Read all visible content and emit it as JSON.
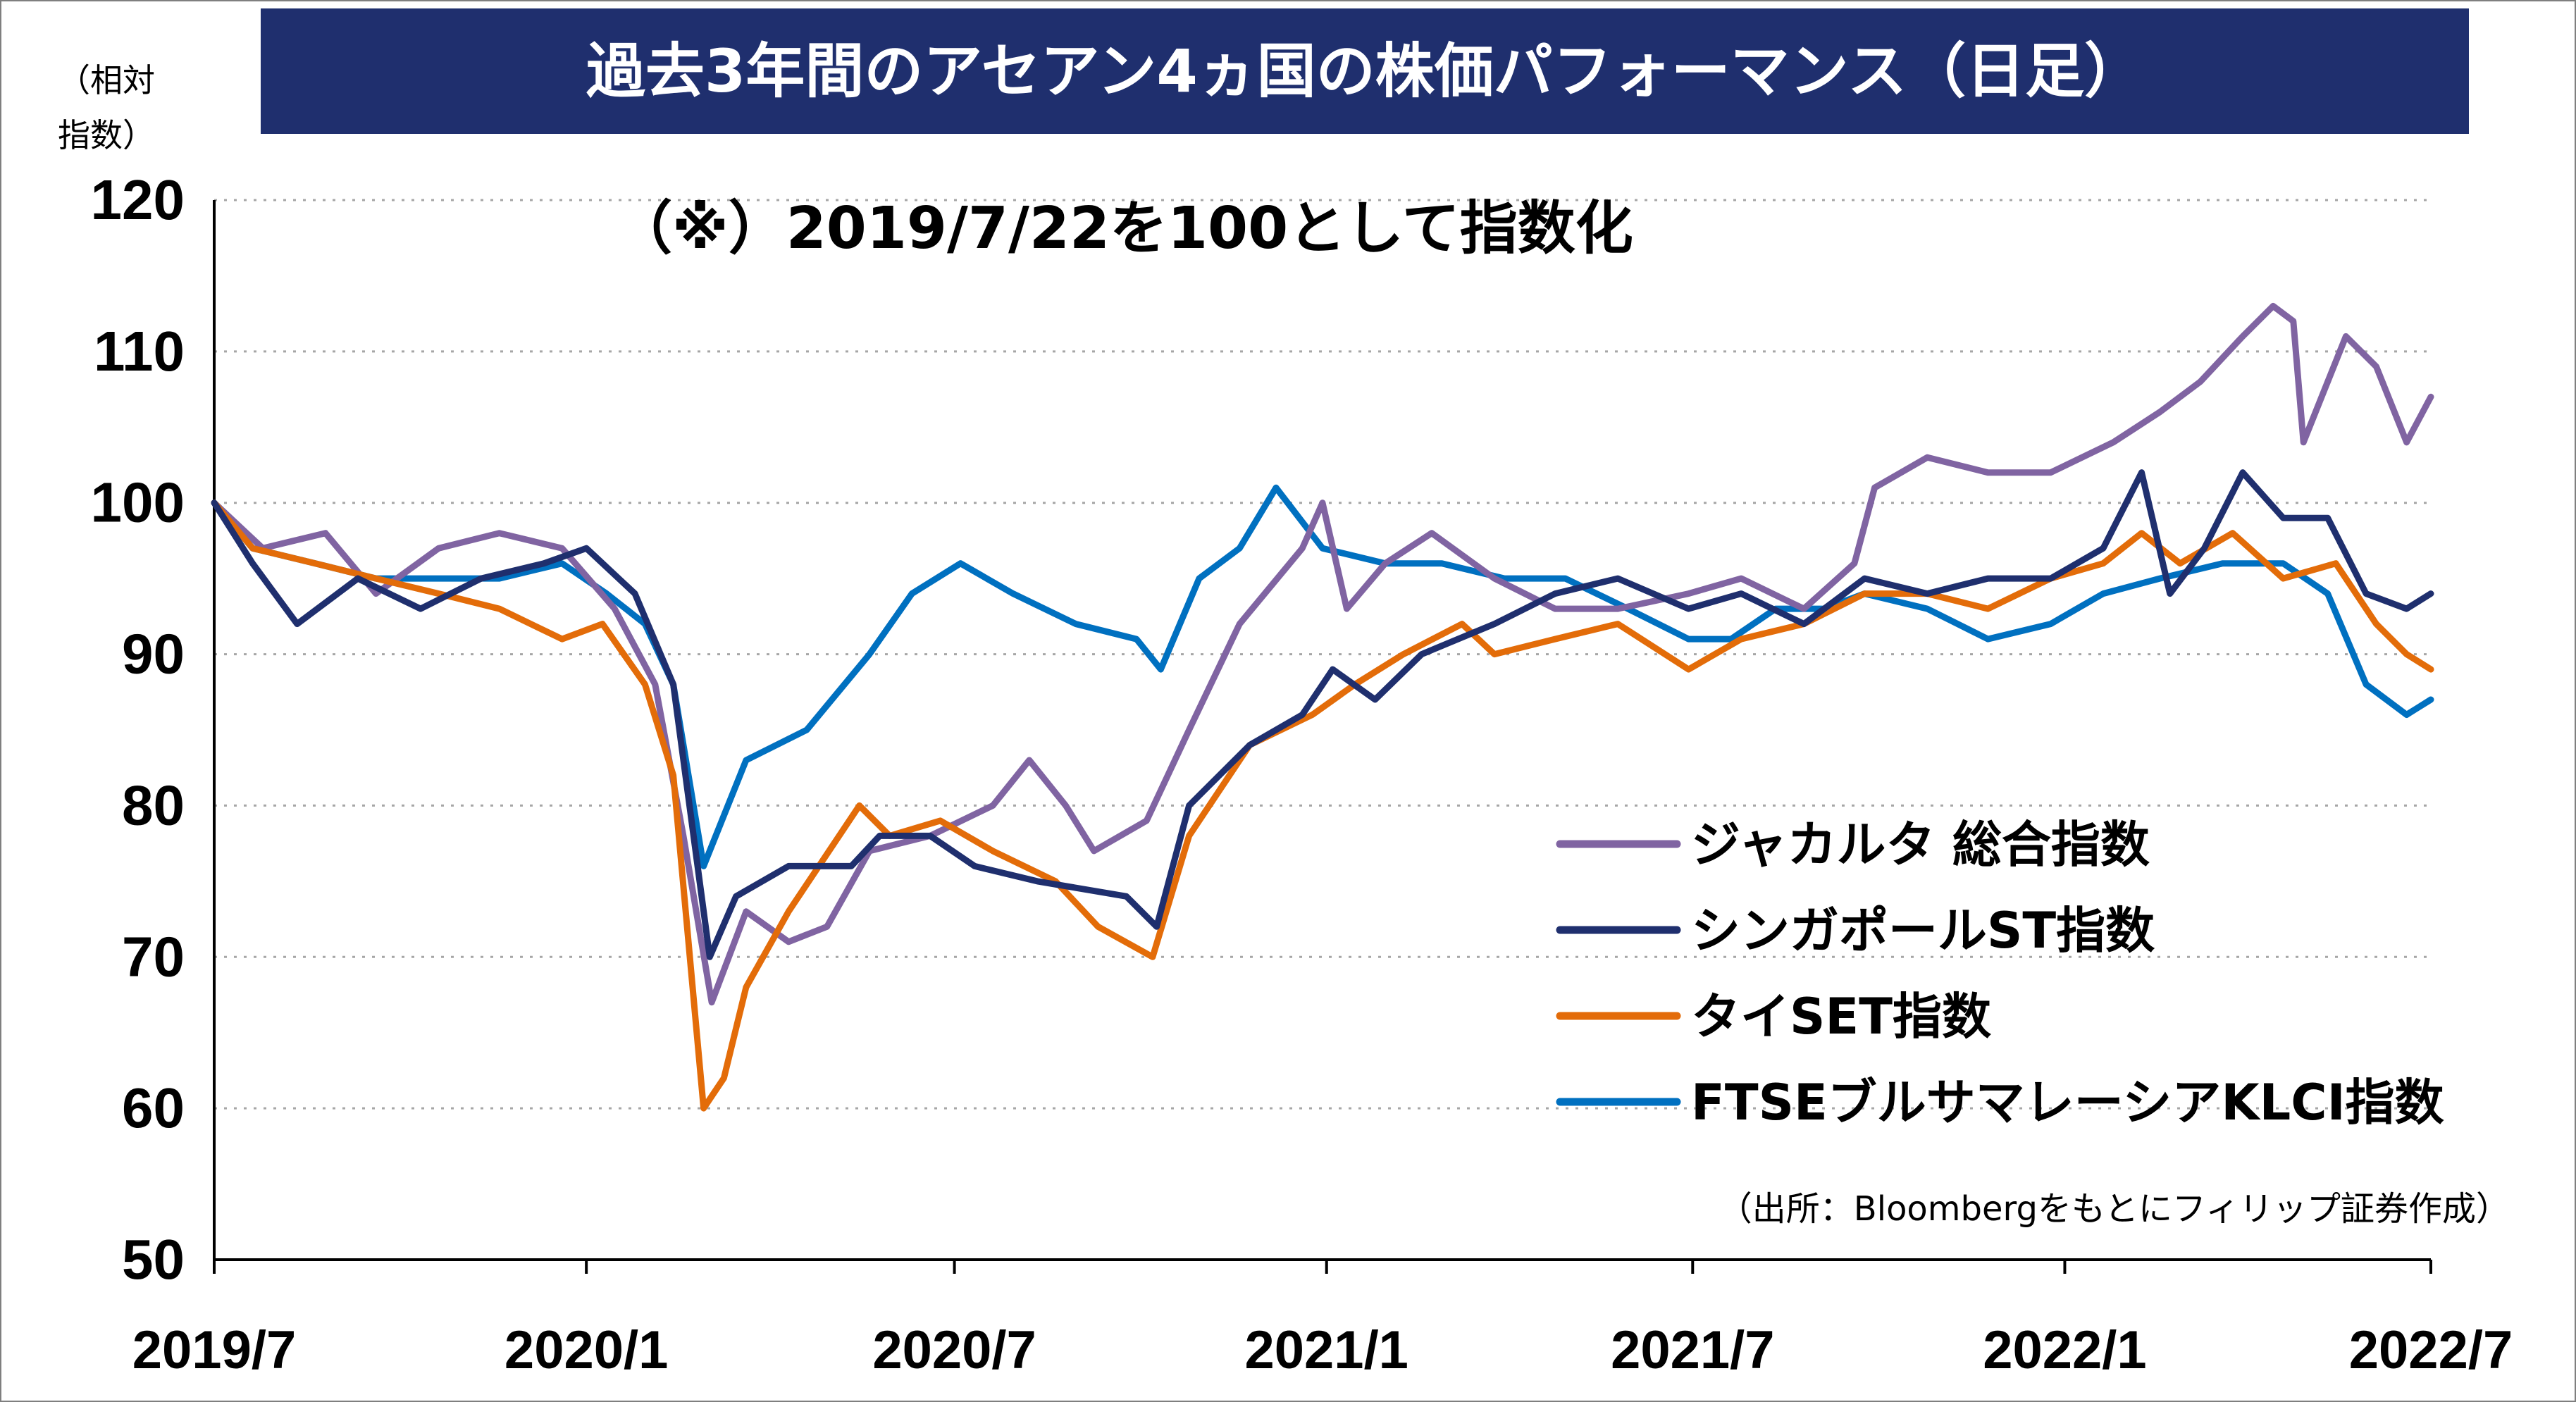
{
  "chart_data": {
    "type": "line",
    "title": "過去3年間のアセアン4ヵ国の株価パフォーマンス（日足）",
    "note": "（※）2019/7/22を100として指数化",
    "ylabel": "（相対指数）",
    "ylabel_line1": "（相対",
    "ylabel_line2": "指数）",
    "source": "（出所：Bloombergをもとにフィリップ証券作成）",
    "ylim": [
      50,
      120
    ],
    "yticks": [
      50,
      60,
      70,
      80,
      90,
      100,
      110,
      120
    ],
    "ytick_labels": [
      "50",
      "60",
      "70",
      "80",
      "90",
      "100",
      "110",
      "120"
    ],
    "xlim": [
      "2019-07-22",
      "2022-07-22"
    ],
    "xtick_labels": [
      "2019/7",
      "2020/1",
      "2020/7",
      "2021/1",
      "2021/7",
      "2022/1",
      "2022/7"
    ],
    "xticks": [
      "2019-07-22",
      "2020-01-22",
      "2020-07-22",
      "2021-01-22",
      "2021-07-22",
      "2022-01-22",
      "2022-07-22"
    ],
    "grid": true,
    "legend_position": "bottom-right",
    "series": [
      {
        "name": "ジャカルタ 総合指数",
        "color": "#8064a2",
        "points": [
          [
            "2019-07-22",
            100
          ],
          [
            "2019-08-15",
            97
          ],
          [
            "2019-09-15",
            98
          ],
          [
            "2019-10-10",
            94
          ],
          [
            "2019-11-10",
            97
          ],
          [
            "2019-12-10",
            98
          ],
          [
            "2020-01-10",
            97
          ],
          [
            "2020-02-05",
            93
          ],
          [
            "2020-02-25",
            88
          ],
          [
            "2020-03-10",
            78
          ],
          [
            "2020-03-24",
            67
          ],
          [
            "2020-04-10",
            73
          ],
          [
            "2020-05-01",
            71
          ],
          [
            "2020-05-20",
            72
          ],
          [
            "2020-06-10",
            77
          ],
          [
            "2020-07-10",
            78
          ],
          [
            "2020-08-10",
            80
          ],
          [
            "2020-08-28",
            83
          ],
          [
            "2020-09-15",
            80
          ],
          [
            "2020-09-29",
            77
          ],
          [
            "2020-10-25",
            79
          ],
          [
            "2020-11-15",
            85
          ],
          [
            "2020-12-10",
            92
          ],
          [
            "2021-01-10",
            97
          ],
          [
            "2021-01-20",
            100
          ],
          [
            "2021-02-01",
            93
          ],
          [
            "2021-02-20",
            96
          ],
          [
            "2021-03-15",
            98
          ],
          [
            "2021-04-15",
            95
          ],
          [
            "2021-05-15",
            93
          ],
          [
            "2021-06-15",
            93
          ],
          [
            "2021-07-20",
            94
          ],
          [
            "2021-08-15",
            95
          ],
          [
            "2021-09-15",
            93
          ],
          [
            "2021-10-10",
            96
          ],
          [
            "2021-10-20",
            101
          ],
          [
            "2021-11-15",
            103
          ],
          [
            "2021-12-15",
            102
          ],
          [
            "2022-01-15",
            102
          ],
          [
            "2022-02-15",
            104
          ],
          [
            "2022-03-10",
            106
          ],
          [
            "2022-03-30",
            108
          ],
          [
            "2022-04-20",
            111
          ],
          [
            "2022-05-05",
            113
          ],
          [
            "2022-05-15",
            112
          ],
          [
            "2022-05-20",
            104
          ],
          [
            "2022-06-01",
            108
          ],
          [
            "2022-06-10",
            111
          ],
          [
            "2022-06-25",
            109
          ],
          [
            "2022-07-10",
            104
          ],
          [
            "2022-07-22",
            107
          ]
        ]
      },
      {
        "name": "シンガポールST指数",
        "color": "#1f2f6e",
        "points": [
          [
            "2019-07-22",
            100
          ],
          [
            "2019-08-10",
            96
          ],
          [
            "2019-09-01",
            92
          ],
          [
            "2019-10-01",
            95
          ],
          [
            "2019-11-01",
            93
          ],
          [
            "2019-12-01",
            95
          ],
          [
            "2020-01-01",
            96
          ],
          [
            "2020-01-22",
            97
          ],
          [
            "2020-02-15",
            94
          ],
          [
            "2020-03-05",
            88
          ],
          [
            "2020-03-23",
            70
          ],
          [
            "2020-04-05",
            74
          ],
          [
            "2020-05-01",
            76
          ],
          [
            "2020-06-01",
            76
          ],
          [
            "2020-06-15",
            78
          ],
          [
            "2020-07-10",
            78
          ],
          [
            "2020-08-01",
            76
          ],
          [
            "2020-09-01",
            75
          ],
          [
            "2020-10-15",
            74
          ],
          [
            "2020-10-30",
            72
          ],
          [
            "2020-11-15",
            80
          ],
          [
            "2020-12-15",
            84
          ],
          [
            "2021-01-10",
            86
          ],
          [
            "2021-01-25",
            89
          ],
          [
            "2021-02-15",
            87
          ],
          [
            "2021-03-10",
            90
          ],
          [
            "2021-04-15",
            92
          ],
          [
            "2021-05-15",
            94
          ],
          [
            "2021-06-15",
            95
          ],
          [
            "2021-07-20",
            93
          ],
          [
            "2021-08-15",
            94
          ],
          [
            "2021-09-15",
            92
          ],
          [
            "2021-10-15",
            95
          ],
          [
            "2021-11-15",
            94
          ],
          [
            "2021-12-15",
            95
          ],
          [
            "2022-01-15",
            95
          ],
          [
            "2022-02-10",
            97
          ],
          [
            "2022-03-01",
            102
          ],
          [
            "2022-03-15",
            94
          ],
          [
            "2022-04-01",
            97
          ],
          [
            "2022-04-20",
            102
          ],
          [
            "2022-05-10",
            99
          ],
          [
            "2022-06-01",
            99
          ],
          [
            "2022-06-20",
            94
          ],
          [
            "2022-07-10",
            93
          ],
          [
            "2022-07-22",
            94
          ]
        ]
      },
      {
        "name": "タイSET指数",
        "color": "#e36c09",
        "points": [
          [
            "2019-07-22",
            100
          ],
          [
            "2019-08-10",
            97
          ],
          [
            "2019-09-10",
            96
          ],
          [
            "2019-10-10",
            95
          ],
          [
            "2019-11-10",
            94
          ],
          [
            "2019-12-10",
            93
          ],
          [
            "2020-01-10",
            91
          ],
          [
            "2020-01-30",
            92
          ],
          [
            "2020-02-20",
            88
          ],
          [
            "2020-03-05",
            82
          ],
          [
            "2020-03-20",
            60
          ],
          [
            "2020-03-30",
            62
          ],
          [
            "2020-04-10",
            68
          ],
          [
            "2020-05-01",
            73
          ],
          [
            "2020-06-05",
            80
          ],
          [
            "2020-06-20",
            78
          ],
          [
            "2020-07-15",
            79
          ],
          [
            "2020-08-10",
            77
          ],
          [
            "2020-09-10",
            75
          ],
          [
            "2020-10-01",
            72
          ],
          [
            "2020-10-28",
            70
          ],
          [
            "2020-11-15",
            78
          ],
          [
            "2020-12-15",
            84
          ],
          [
            "2021-01-15",
            86
          ],
          [
            "2021-02-05",
            88
          ],
          [
            "2021-03-01",
            90
          ],
          [
            "2021-03-30",
            92
          ],
          [
            "2021-04-15",
            90
          ],
          [
            "2021-05-15",
            91
          ],
          [
            "2021-06-15",
            92
          ],
          [
            "2021-07-20",
            89
          ],
          [
            "2021-08-15",
            91
          ],
          [
            "2021-09-15",
            92
          ],
          [
            "2021-10-15",
            94
          ],
          [
            "2021-11-15",
            94
          ],
          [
            "2021-12-15",
            93
          ],
          [
            "2022-01-15",
            95
          ],
          [
            "2022-02-10",
            96
          ],
          [
            "2022-03-01",
            98
          ],
          [
            "2022-03-20",
            96
          ],
          [
            "2022-04-15",
            98
          ],
          [
            "2022-05-10",
            95
          ],
          [
            "2022-06-05",
            96
          ],
          [
            "2022-06-25",
            92
          ],
          [
            "2022-07-10",
            90
          ],
          [
            "2022-07-22",
            89
          ]
        ]
      },
      {
        "name": "FTSEブルサマレーシアKLCI指数",
        "color": "#0070c0",
        "points": [
          [
            "2019-07-22",
            100
          ],
          [
            "2019-08-10",
            97
          ],
          [
            "2019-09-10",
            96
          ],
          [
            "2019-10-10",
            95
          ],
          [
            "2019-11-10",
            95
          ],
          [
            "2019-12-10",
            95
          ],
          [
            "2020-01-10",
            96
          ],
          [
            "2020-02-01",
            94
          ],
          [
            "2020-02-20",
            92
          ],
          [
            "2020-03-05",
            88
          ],
          [
            "2020-03-20",
            76
          ],
          [
            "2020-04-10",
            83
          ],
          [
            "2020-05-10",
            85
          ],
          [
            "2020-06-10",
            90
          ],
          [
            "2020-07-01",
            94
          ],
          [
            "2020-07-25",
            96
          ],
          [
            "2020-08-20",
            94
          ],
          [
            "2020-09-20",
            92
          ],
          [
            "2020-10-20",
            91
          ],
          [
            "2020-11-01",
            89
          ],
          [
            "2020-11-20",
            95
          ],
          [
            "2020-12-10",
            97
          ],
          [
            "2020-12-28",
            101
          ],
          [
            "2021-01-20",
            97
          ],
          [
            "2021-02-20",
            96
          ],
          [
            "2021-03-20",
            96
          ],
          [
            "2021-04-20",
            95
          ],
          [
            "2021-05-20",
            95
          ],
          [
            "2021-06-20",
            93
          ],
          [
            "2021-07-20",
            91
          ],
          [
            "2021-08-10",
            91
          ],
          [
            "2021-09-01",
            93
          ],
          [
            "2021-09-25",
            93
          ],
          [
            "2021-10-15",
            94
          ],
          [
            "2021-11-15",
            93
          ],
          [
            "2021-12-15",
            91
          ],
          [
            "2022-01-15",
            92
          ],
          [
            "2022-02-10",
            94
          ],
          [
            "2022-03-10",
            95
          ],
          [
            "2022-04-10",
            96
          ],
          [
            "2022-05-10",
            96
          ],
          [
            "2022-06-01",
            94
          ],
          [
            "2022-06-20",
            88
          ],
          [
            "2022-07-10",
            86
          ],
          [
            "2022-07-22",
            87
          ]
        ]
      }
    ]
  }
}
